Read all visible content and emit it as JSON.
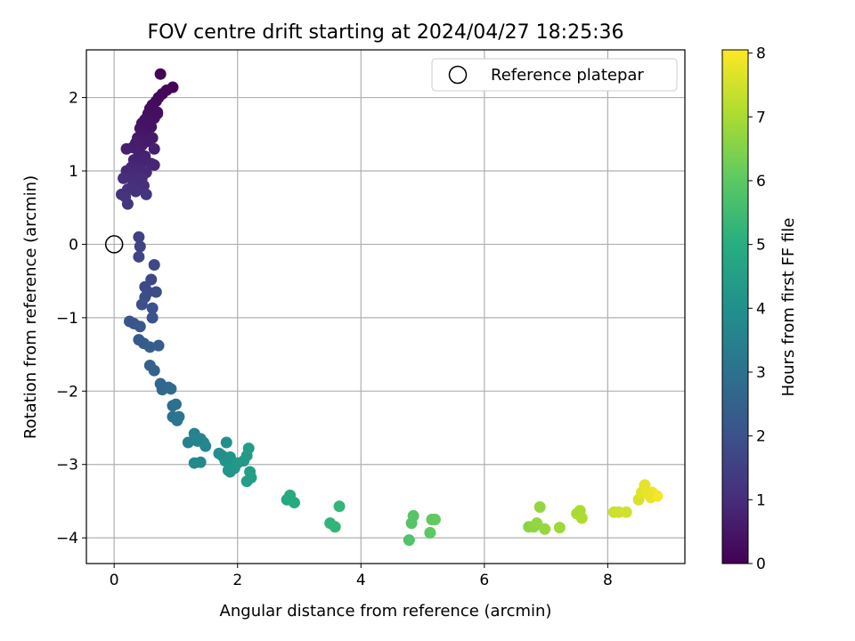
{
  "chart_data": {
    "type": "scatter",
    "title": "FOV centre drift starting at 2024/04/27 18:25:36",
    "xlabel": "Angular distance from reference (arcmin)",
    "ylabel": "Rotation from reference (arcmin)",
    "xlim": [
      -0.45,
      9.25
    ],
    "ylim": [
      -4.35,
      2.65
    ],
    "xticks": [
      0,
      2,
      4,
      6,
      8
    ],
    "yticks": [
      -4,
      -3,
      -2,
      -1,
      0,
      1,
      2
    ],
    "grid": true,
    "colormap": "viridis",
    "colorbar": {
      "label": "Hours from first FF file",
      "range": [
        0,
        8.05
      ],
      "ticks": [
        0,
        1,
        2,
        3,
        4,
        5,
        6,
        7,
        8
      ]
    },
    "legend": {
      "position": "top-right",
      "entries": [
        "Reference platepar"
      ]
    },
    "reference_point": {
      "x": 0,
      "y": 0
    },
    "points": [
      {
        "x": 0.75,
        "y": 2.32,
        "h": 0.05
      },
      {
        "x": 0.95,
        "y": 2.14,
        "h": 0.1
      },
      {
        "x": 0.85,
        "y": 2.1,
        "h": 0.12
      },
      {
        "x": 0.78,
        "y": 2.05,
        "h": 0.15
      },
      {
        "x": 0.72,
        "y": 2.0,
        "h": 0.18
      },
      {
        "x": 0.68,
        "y": 1.95,
        "h": 0.2
      },
      {
        "x": 0.62,
        "y": 1.9,
        "h": 0.25
      },
      {
        "x": 0.58,
        "y": 1.85,
        "h": 0.28
      },
      {
        "x": 0.7,
        "y": 1.8,
        "h": 0.3
      },
      {
        "x": 0.55,
        "y": 1.78,
        "h": 0.32
      },
      {
        "x": 0.5,
        "y": 1.7,
        "h": 0.35
      },
      {
        "x": 0.65,
        "y": 1.72,
        "h": 0.38
      },
      {
        "x": 0.45,
        "y": 1.65,
        "h": 0.4
      },
      {
        "x": 0.6,
        "y": 1.6,
        "h": 0.42
      },
      {
        "x": 0.42,
        "y": 1.58,
        "h": 0.45
      },
      {
        "x": 0.55,
        "y": 1.52,
        "h": 0.48
      },
      {
        "x": 0.48,
        "y": 1.5,
        "h": 0.5
      },
      {
        "x": 0.38,
        "y": 1.45,
        "h": 0.52
      },
      {
        "x": 0.62,
        "y": 1.45,
        "h": 0.55
      },
      {
        "x": 0.52,
        "y": 1.4,
        "h": 0.58
      },
      {
        "x": 0.45,
        "y": 1.35,
        "h": 0.6
      },
      {
        "x": 0.35,
        "y": 1.38,
        "h": 0.62
      },
      {
        "x": 0.3,
        "y": 1.32,
        "h": 0.65
      },
      {
        "x": 0.65,
        "y": 1.3,
        "h": 0.68
      },
      {
        "x": 0.2,
        "y": 1.3,
        "h": 0.7
      },
      {
        "x": 0.4,
        "y": 1.25,
        "h": 0.72
      },
      {
        "x": 0.5,
        "y": 1.2,
        "h": 0.75
      },
      {
        "x": 0.32,
        "y": 1.15,
        "h": 0.78
      },
      {
        "x": 0.45,
        "y": 1.12,
        "h": 0.8
      },
      {
        "x": 0.6,
        "y": 1.1,
        "h": 0.82
      },
      {
        "x": 0.28,
        "y": 1.05,
        "h": 0.85
      },
      {
        "x": 0.4,
        "y": 1.02,
        "h": 0.88
      },
      {
        "x": 0.2,
        "y": 1.0,
        "h": 0.9
      },
      {
        "x": 0.52,
        "y": 0.98,
        "h": 0.92
      },
      {
        "x": 0.35,
        "y": 0.95,
        "h": 0.95
      },
      {
        "x": 0.25,
        "y": 0.92,
        "h": 0.98
      },
      {
        "x": 0.45,
        "y": 0.9,
        "h": 1.0
      },
      {
        "x": 0.15,
        "y": 0.9,
        "h": 1.02
      },
      {
        "x": 0.38,
        "y": 0.85,
        "h": 1.05
      },
      {
        "x": 0.3,
        "y": 0.8,
        "h": 1.08
      },
      {
        "x": 0.48,
        "y": 0.8,
        "h": 1.1
      },
      {
        "x": 0.22,
        "y": 0.75,
        "h": 1.12
      },
      {
        "x": 0.35,
        "y": 0.72,
        "h": 1.15
      },
      {
        "x": 0.12,
        "y": 0.68,
        "h": 1.18
      },
      {
        "x": 0.18,
        "y": 0.65,
        "h": 1.2
      },
      {
        "x": 0.52,
        "y": 0.68,
        "h": 1.22
      },
      {
        "x": 0.22,
        "y": 0.55,
        "h": 1.25
      },
      {
        "x": 0.65,
        "y": 1.08,
        "h": 0.85
      },
      {
        "x": 0.55,
        "y": 1.62,
        "h": 0.4
      },
      {
        "x": 0.7,
        "y": 1.78,
        "h": 0.3
      },
      {
        "x": 0.4,
        "y": 0.1,
        "h": 1.55
      },
      {
        "x": 0.42,
        "y": -0.03,
        "h": 1.6
      },
      {
        "x": 0.4,
        "y": -0.17,
        "h": 1.65
      },
      {
        "x": 0.65,
        "y": -0.28,
        "h": 1.7
      },
      {
        "x": 0.6,
        "y": -0.48,
        "h": 1.75
      },
      {
        "x": 0.5,
        "y": -0.58,
        "h": 1.8
      },
      {
        "x": 0.55,
        "y": -0.65,
        "h": 1.85
      },
      {
        "x": 0.68,
        "y": -0.65,
        "h": 1.88
      },
      {
        "x": 0.5,
        "y": -0.72,
        "h": 1.9
      },
      {
        "x": 0.45,
        "y": -0.82,
        "h": 1.95
      },
      {
        "x": 0.62,
        "y": -0.87,
        "h": 2.0
      },
      {
        "x": 0.62,
        "y": -1.0,
        "h": 2.05
      },
      {
        "x": 0.25,
        "y": -1.05,
        "h": 2.1
      },
      {
        "x": 0.32,
        "y": -1.08,
        "h": 2.15
      },
      {
        "x": 0.42,
        "y": -1.12,
        "h": 2.2
      },
      {
        "x": 0.4,
        "y": -1.3,
        "h": 2.25
      },
      {
        "x": 0.48,
        "y": -1.35,
        "h": 2.3
      },
      {
        "x": 0.72,
        "y": -1.38,
        "h": 2.35
      },
      {
        "x": 0.58,
        "y": -1.4,
        "h": 2.4
      },
      {
        "x": 0.58,
        "y": -1.65,
        "h": 2.5
      },
      {
        "x": 0.65,
        "y": -1.72,
        "h": 2.55
      },
      {
        "x": 0.75,
        "y": -1.9,
        "h": 2.65
      },
      {
        "x": 0.78,
        "y": -1.98,
        "h": 2.7
      },
      {
        "x": 0.88,
        "y": -1.95,
        "h": 2.75
      },
      {
        "x": 0.92,
        "y": -1.97,
        "h": 2.8
      },
      {
        "x": 0.95,
        "y": -2.2,
        "h": 2.9
      },
      {
        "x": 1.0,
        "y": -2.18,
        "h": 2.95
      },
      {
        "x": 0.95,
        "y": -2.35,
        "h": 3.0
      },
      {
        "x": 1.02,
        "y": -2.4,
        "h": 3.05
      },
      {
        "x": 1.05,
        "y": -2.35,
        "h": 3.1
      },
      {
        "x": 1.2,
        "y": -2.7,
        "h": 3.5
      },
      {
        "x": 1.3,
        "y": -2.58,
        "h": 3.55
      },
      {
        "x": 1.35,
        "y": -2.68,
        "h": 3.6
      },
      {
        "x": 1.45,
        "y": -2.7,
        "h": 3.65
      },
      {
        "x": 1.4,
        "y": -2.65,
        "h": 3.62
      },
      {
        "x": 1.48,
        "y": -2.75,
        "h": 3.7
      },
      {
        "x": 1.3,
        "y": -2.98,
        "h": 3.75
      },
      {
        "x": 1.4,
        "y": -2.97,
        "h": 3.8
      },
      {
        "x": 1.7,
        "y": -2.85,
        "h": 3.9
      },
      {
        "x": 1.75,
        "y": -2.88,
        "h": 3.95
      },
      {
        "x": 1.82,
        "y": -2.7,
        "h": 4.0
      },
      {
        "x": 1.8,
        "y": -2.95,
        "h": 4.05
      },
      {
        "x": 1.88,
        "y": -2.9,
        "h": 4.1
      },
      {
        "x": 1.9,
        "y": -3.02,
        "h": 4.15
      },
      {
        "x": 1.85,
        "y": -3.08,
        "h": 4.2
      },
      {
        "x": 1.95,
        "y": -3.05,
        "h": 4.25
      },
      {
        "x": 2.0,
        "y": -2.98,
        "h": 4.28
      },
      {
        "x": 2.1,
        "y": -2.95,
        "h": 4.32
      },
      {
        "x": 2.15,
        "y": -2.88,
        "h": 4.35
      },
      {
        "x": 2.18,
        "y": -2.78,
        "h": 4.4
      },
      {
        "x": 2.2,
        "y": -3.1,
        "h": 4.45
      },
      {
        "x": 2.22,
        "y": -3.18,
        "h": 4.5
      },
      {
        "x": 2.15,
        "y": -3.23,
        "h": 4.52
      },
      {
        "x": 1.88,
        "y": -3.1,
        "h": 4.2
      },
      {
        "x": 2.8,
        "y": -3.48,
        "h": 4.8
      },
      {
        "x": 2.85,
        "y": -3.42,
        "h": 4.85
      },
      {
        "x": 2.92,
        "y": -3.52,
        "h": 4.9
      },
      {
        "x": 3.5,
        "y": -3.8,
        "h": 5.2
      },
      {
        "x": 3.58,
        "y": -3.85,
        "h": 5.25
      },
      {
        "x": 3.65,
        "y": -3.57,
        "h": 5.3
      },
      {
        "x": 4.78,
        "y": -4.03,
        "h": 5.8
      },
      {
        "x": 4.82,
        "y": -3.8,
        "h": 5.85
      },
      {
        "x": 4.85,
        "y": -3.7,
        "h": 5.9
      },
      {
        "x": 5.12,
        "y": -3.93,
        "h": 6.0
      },
      {
        "x": 5.15,
        "y": -3.75,
        "h": 6.05
      },
      {
        "x": 5.2,
        "y": -3.75,
        "h": 6.1
      },
      {
        "x": 6.72,
        "y": -3.85,
        "h": 6.6
      },
      {
        "x": 6.8,
        "y": -3.85,
        "h": 6.65
      },
      {
        "x": 6.85,
        "y": -3.8,
        "h": 6.7
      },
      {
        "x": 6.9,
        "y": -3.58,
        "h": 6.72
      },
      {
        "x": 6.98,
        "y": -3.88,
        "h": 6.75
      },
      {
        "x": 7.22,
        "y": -3.86,
        "h": 6.85
      },
      {
        "x": 7.5,
        "y": -3.67,
        "h": 6.95
      },
      {
        "x": 7.55,
        "y": -3.63,
        "h": 7.0
      },
      {
        "x": 7.58,
        "y": -3.73,
        "h": 7.05
      },
      {
        "x": 8.1,
        "y": -3.65,
        "h": 7.4
      },
      {
        "x": 8.18,
        "y": -3.65,
        "h": 7.45
      },
      {
        "x": 8.3,
        "y": -3.65,
        "h": 7.5
      },
      {
        "x": 8.5,
        "y": -3.48,
        "h": 7.6
      },
      {
        "x": 8.55,
        "y": -3.38,
        "h": 7.7
      },
      {
        "x": 8.6,
        "y": -3.28,
        "h": 7.75
      },
      {
        "x": 8.7,
        "y": -3.45,
        "h": 7.85
      },
      {
        "x": 8.72,
        "y": -3.38,
        "h": 7.9
      },
      {
        "x": 8.8,
        "y": -3.43,
        "h": 7.95
      },
      {
        "x": 8.65,
        "y": -3.4,
        "h": 7.8
      }
    ]
  }
}
